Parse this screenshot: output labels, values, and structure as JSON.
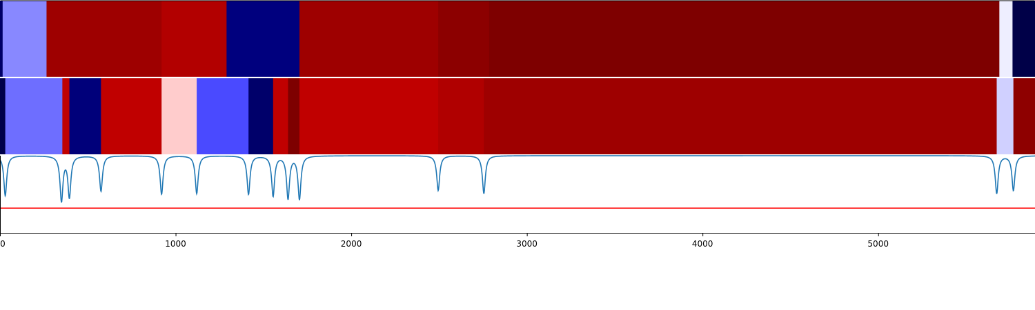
{
  "chart_data": {
    "type": "heatmap",
    "title": "",
    "xlabel": "",
    "ylabel": "",
    "xlim": [
      0,
      5893
    ],
    "x_ticks": [
      0,
      1000,
      2000,
      3000,
      4000,
      5000
    ],
    "grid": false,
    "tracks": [
      {
        "segments": [
          {
            "start": 0,
            "end": 15,
            "color": "#000066"
          },
          {
            "start": 15,
            "end": 265,
            "color": "#8888ff"
          },
          {
            "start": 265,
            "end": 920,
            "color": "#9e0000"
          },
          {
            "start": 920,
            "end": 1290,
            "color": "#b20000"
          },
          {
            "start": 1290,
            "end": 1705,
            "color": "#00007e"
          },
          {
            "start": 1705,
            "end": 2495,
            "color": "#9e0000"
          },
          {
            "start": 2495,
            "end": 2785,
            "color": "#8c0000"
          },
          {
            "start": 2785,
            "end": 5690,
            "color": "#7e0000"
          },
          {
            "start": 5690,
            "end": 5765,
            "color": "#eeeeff"
          },
          {
            "start": 5765,
            "end": 5893,
            "color": "#000048"
          }
        ]
      },
      {
        "segments": [
          {
            "start": 0,
            "end": 30,
            "color": "#00004a"
          },
          {
            "start": 30,
            "end": 355,
            "color": "#6e6eff"
          },
          {
            "start": 355,
            "end": 395,
            "color": "#c00000"
          },
          {
            "start": 395,
            "end": 575,
            "color": "#00007a"
          },
          {
            "start": 575,
            "end": 920,
            "color": "#c00000"
          },
          {
            "start": 920,
            "end": 1120,
            "color": "#ffcccc"
          },
          {
            "start": 1120,
            "end": 1415,
            "color": "#4a4aff"
          },
          {
            "start": 1415,
            "end": 1555,
            "color": "#00006a"
          },
          {
            "start": 1555,
            "end": 1640,
            "color": "#c00000"
          },
          {
            "start": 1640,
            "end": 1705,
            "color": "#7e0000"
          },
          {
            "start": 1705,
            "end": 2495,
            "color": "#c00000"
          },
          {
            "start": 2495,
            "end": 2755,
            "color": "#b00000"
          },
          {
            "start": 2755,
            "end": 5675,
            "color": "#9e0000"
          },
          {
            "start": 5675,
            "end": 5770,
            "color": "#d0d0ff"
          },
          {
            "start": 5770,
            "end": 5893,
            "color": "#8e0000"
          }
        ]
      }
    ],
    "line_series": {
      "color": "#1f77b4",
      "ylim": [
        -1.0,
        0.0
      ],
      "baseline": 0.0,
      "dips": [
        {
          "x": 30,
          "depth": 0.52,
          "width": 10
        },
        {
          "x": 350,
          "depth": 0.58,
          "width": 10
        },
        {
          "x": 395,
          "depth": 0.53,
          "width": 10
        },
        {
          "x": 575,
          "depth": 0.46,
          "width": 10
        },
        {
          "x": 920,
          "depth": 0.5,
          "width": 10
        },
        {
          "x": 1120,
          "depth": 0.49,
          "width": 10
        },
        {
          "x": 1415,
          "depth": 0.5,
          "width": 10
        },
        {
          "x": 1555,
          "depth": 0.52,
          "width": 10
        },
        {
          "x": 1640,
          "depth": 0.55,
          "width": 10
        },
        {
          "x": 1705,
          "depth": 0.56,
          "width": 10
        },
        {
          "x": 2495,
          "depth": 0.45,
          "width": 10
        },
        {
          "x": 2755,
          "depth": 0.49,
          "width": 10
        },
        {
          "x": 5675,
          "depth": 0.49,
          "width": 10
        },
        {
          "x": 5770,
          "depth": 0.45,
          "width": 10
        }
      ]
    },
    "threshold_line": {
      "y": -0.68,
      "color": "#ff0000"
    }
  },
  "colors": {
    "line": "#1f77b4",
    "threshold": "#ff0000",
    "axis": "#000000",
    "background": "#ffffff"
  }
}
